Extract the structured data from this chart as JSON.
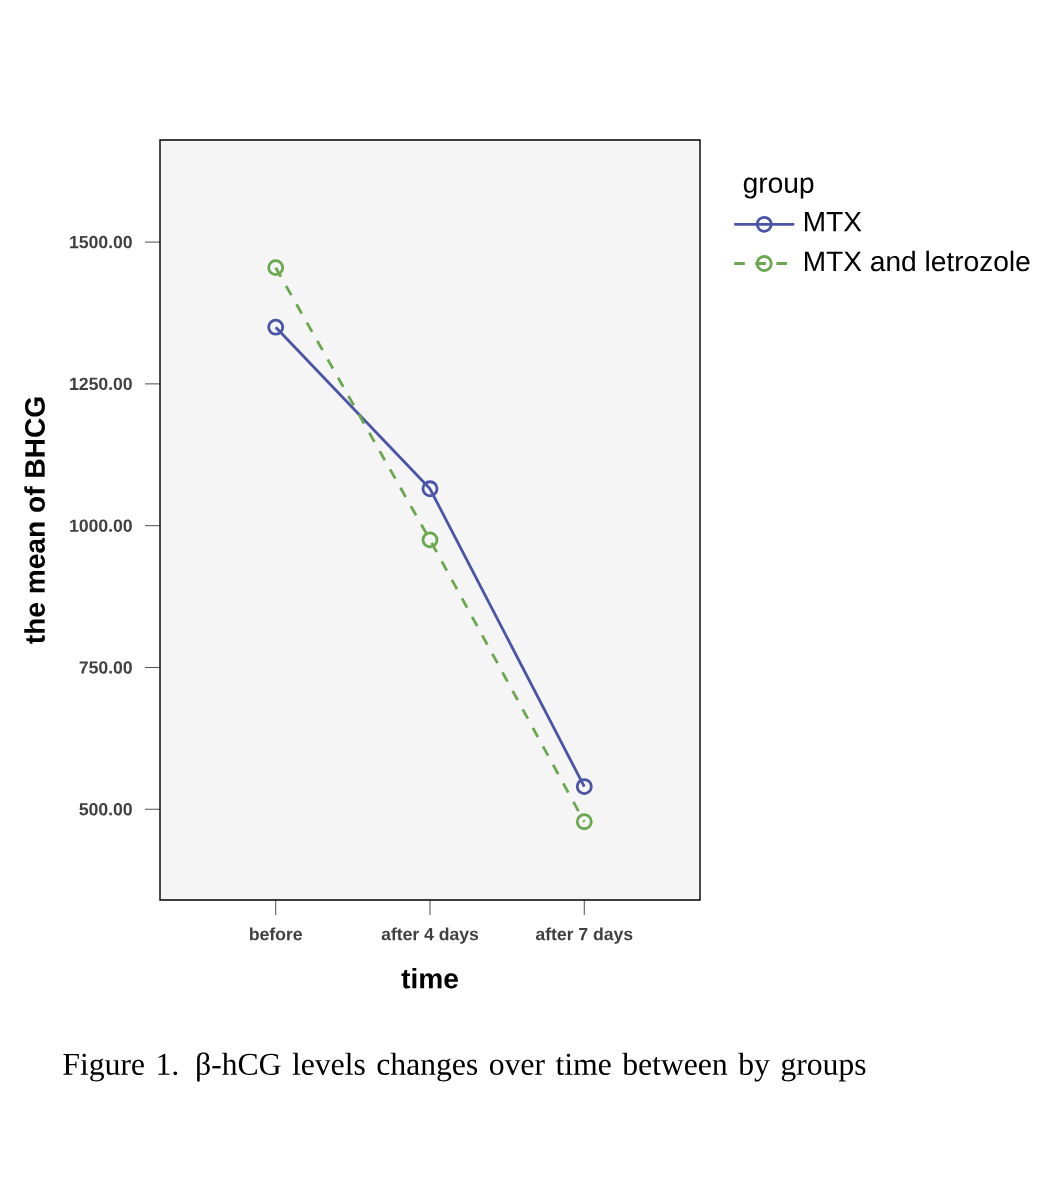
{
  "chart_data": {
    "type": "line",
    "xlabel": "time",
    "ylabel": "the mean of BHCG",
    "legend_title": "group",
    "categories": [
      "before",
      "after 4 days",
      "after 7 days"
    ],
    "series": [
      {
        "name": "MTX",
        "color": "#4a55a8",
        "values": [
          1350,
          1065,
          540
        ],
        "line_style": "solid"
      },
      {
        "name": "MTX and letrozole",
        "color": "#6aa84f",
        "values": [
          1455,
          975,
          478
        ],
        "line_style": "dashed"
      }
    ],
    "marker": "circle",
    "legend": "right",
    "grid": false,
    "ylim": [
      340,
      1680
    ],
    "yticks": [
      {
        "value": 500,
        "label": "500.00"
      },
      {
        "value": 750,
        "label": "750.00"
      },
      {
        "value": 1000,
        "label": "1000.00"
      },
      {
        "value": 1250,
        "label": "1250.00"
      },
      {
        "value": 1500,
        "label": "1500.00"
      }
    ],
    "annotations": [
      "Figure 1. β-hCG levels changes over time between by groups"
    ]
  }
}
